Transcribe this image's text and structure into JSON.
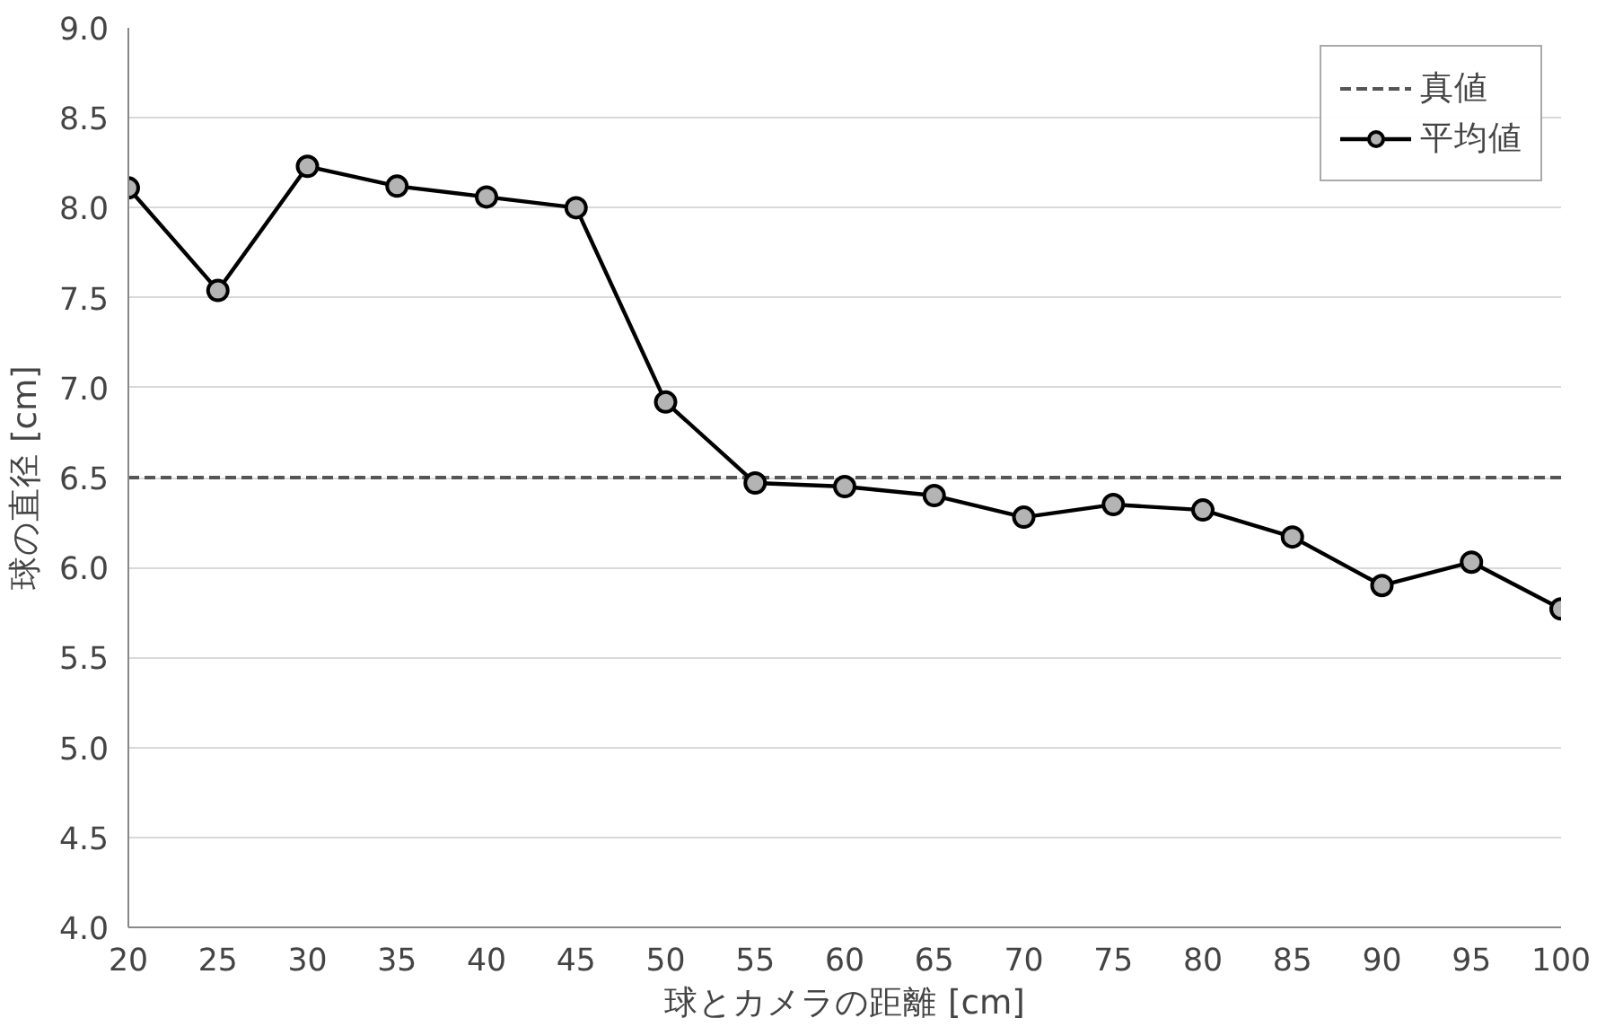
{
  "chart_data": {
    "type": "line",
    "xlabel": "球とカメラの距離 [cm]",
    "ylabel": "球の直径 [cm]",
    "x": [
      20,
      25,
      30,
      35,
      40,
      45,
      50,
      55,
      60,
      65,
      70,
      75,
      80,
      85,
      90,
      95,
      100
    ],
    "series": [
      {
        "name": "平均値",
        "color": "#000000",
        "values": [
          8.11,
          7.54,
          8.23,
          8.12,
          8.06,
          8.0,
          6.92,
          6.47,
          6.45,
          6.4,
          6.28,
          6.35,
          6.32,
          6.17,
          5.9,
          6.03,
          5.77
        ]
      }
    ],
    "ref_lines": [
      {
        "axis": "y",
        "value": 6.5,
        "label": "真値",
        "color": "#555555",
        "line_style": "dashed"
      }
    ],
    "xlim": [
      20,
      100
    ],
    "xticks": [
      20,
      25,
      30,
      35,
      40,
      45,
      50,
      55,
      60,
      65,
      70,
      75,
      80,
      85,
      90,
      95,
      100
    ],
    "ylim": [
      4.0,
      9.0
    ],
    "yticks": [
      {
        "value": 4.0,
        "label": "4.0"
      },
      {
        "value": 4.5,
        "label": "4.5"
      },
      {
        "value": 5.0,
        "label": "5.0"
      },
      {
        "value": 5.5,
        "label": "5.5"
      },
      {
        "value": 6.0,
        "label": "6.0"
      },
      {
        "value": 6.5,
        "label": "6.5"
      },
      {
        "value": 7.0,
        "label": "7.0"
      },
      {
        "value": 7.5,
        "label": "7.5"
      },
      {
        "value": 8.0,
        "label": "8.0"
      },
      {
        "value": 8.5,
        "label": "8.5"
      },
      {
        "value": 9.0,
        "label": "9.0"
      }
    ],
    "grid": "y",
    "legend": "top right",
    "marker": "circle",
    "line_style": "solid"
  }
}
